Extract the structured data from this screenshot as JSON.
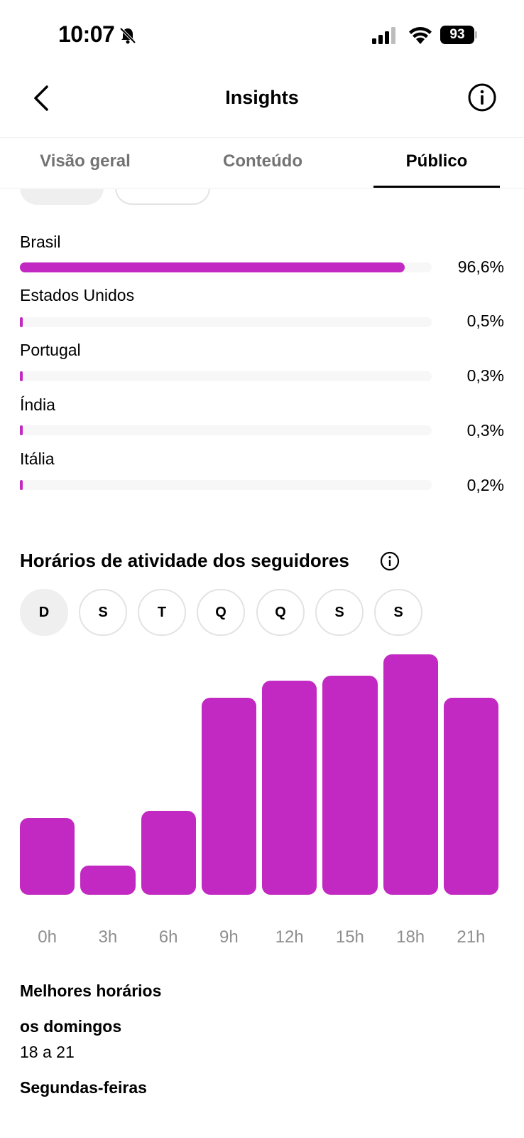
{
  "status_bar": {
    "time": "10:07",
    "battery": "93"
  },
  "header": {
    "title": "Insights"
  },
  "tabs": [
    {
      "label": "Visão geral"
    },
    {
      "label": "Conteúdo"
    },
    {
      "label": "Público"
    }
  ],
  "countries": [
    {
      "name": "Brasil",
      "pct": "96,6%",
      "value": 96.6
    },
    {
      "name": "Estados Unidos",
      "pct": "0,5%",
      "value": 0.5
    },
    {
      "name": "Portugal",
      "pct": "0,3%",
      "value": 0.3
    },
    {
      "name": "Índia",
      "pct": "0,3%",
      "value": 0.3
    },
    {
      "name": "Itália",
      "pct": "0,2%",
      "value": 0.2
    }
  ],
  "activity": {
    "title": "Horários de atividade dos seguidores",
    "days": [
      "D",
      "S",
      "T",
      "Q",
      "Q",
      "S",
      "S"
    ],
    "selected_day": "D"
  },
  "chart_data": {
    "type": "bar",
    "categories": [
      "0h",
      "3h",
      "6h",
      "9h",
      "12h",
      "15h",
      "18h",
      "21h"
    ],
    "values": [
      32,
      12,
      35,
      82,
      89,
      91,
      100,
      82
    ],
    "ylim": [
      0,
      100
    ],
    "bar_color": "#c229c2"
  },
  "best_times": {
    "title": "Melhores horários",
    "day1": "os domingos",
    "hours1": "18 a 21",
    "day2": "Segundas-feiras"
  },
  "colors": {
    "accent": "#c229c2",
    "muted_text": "#737373"
  }
}
